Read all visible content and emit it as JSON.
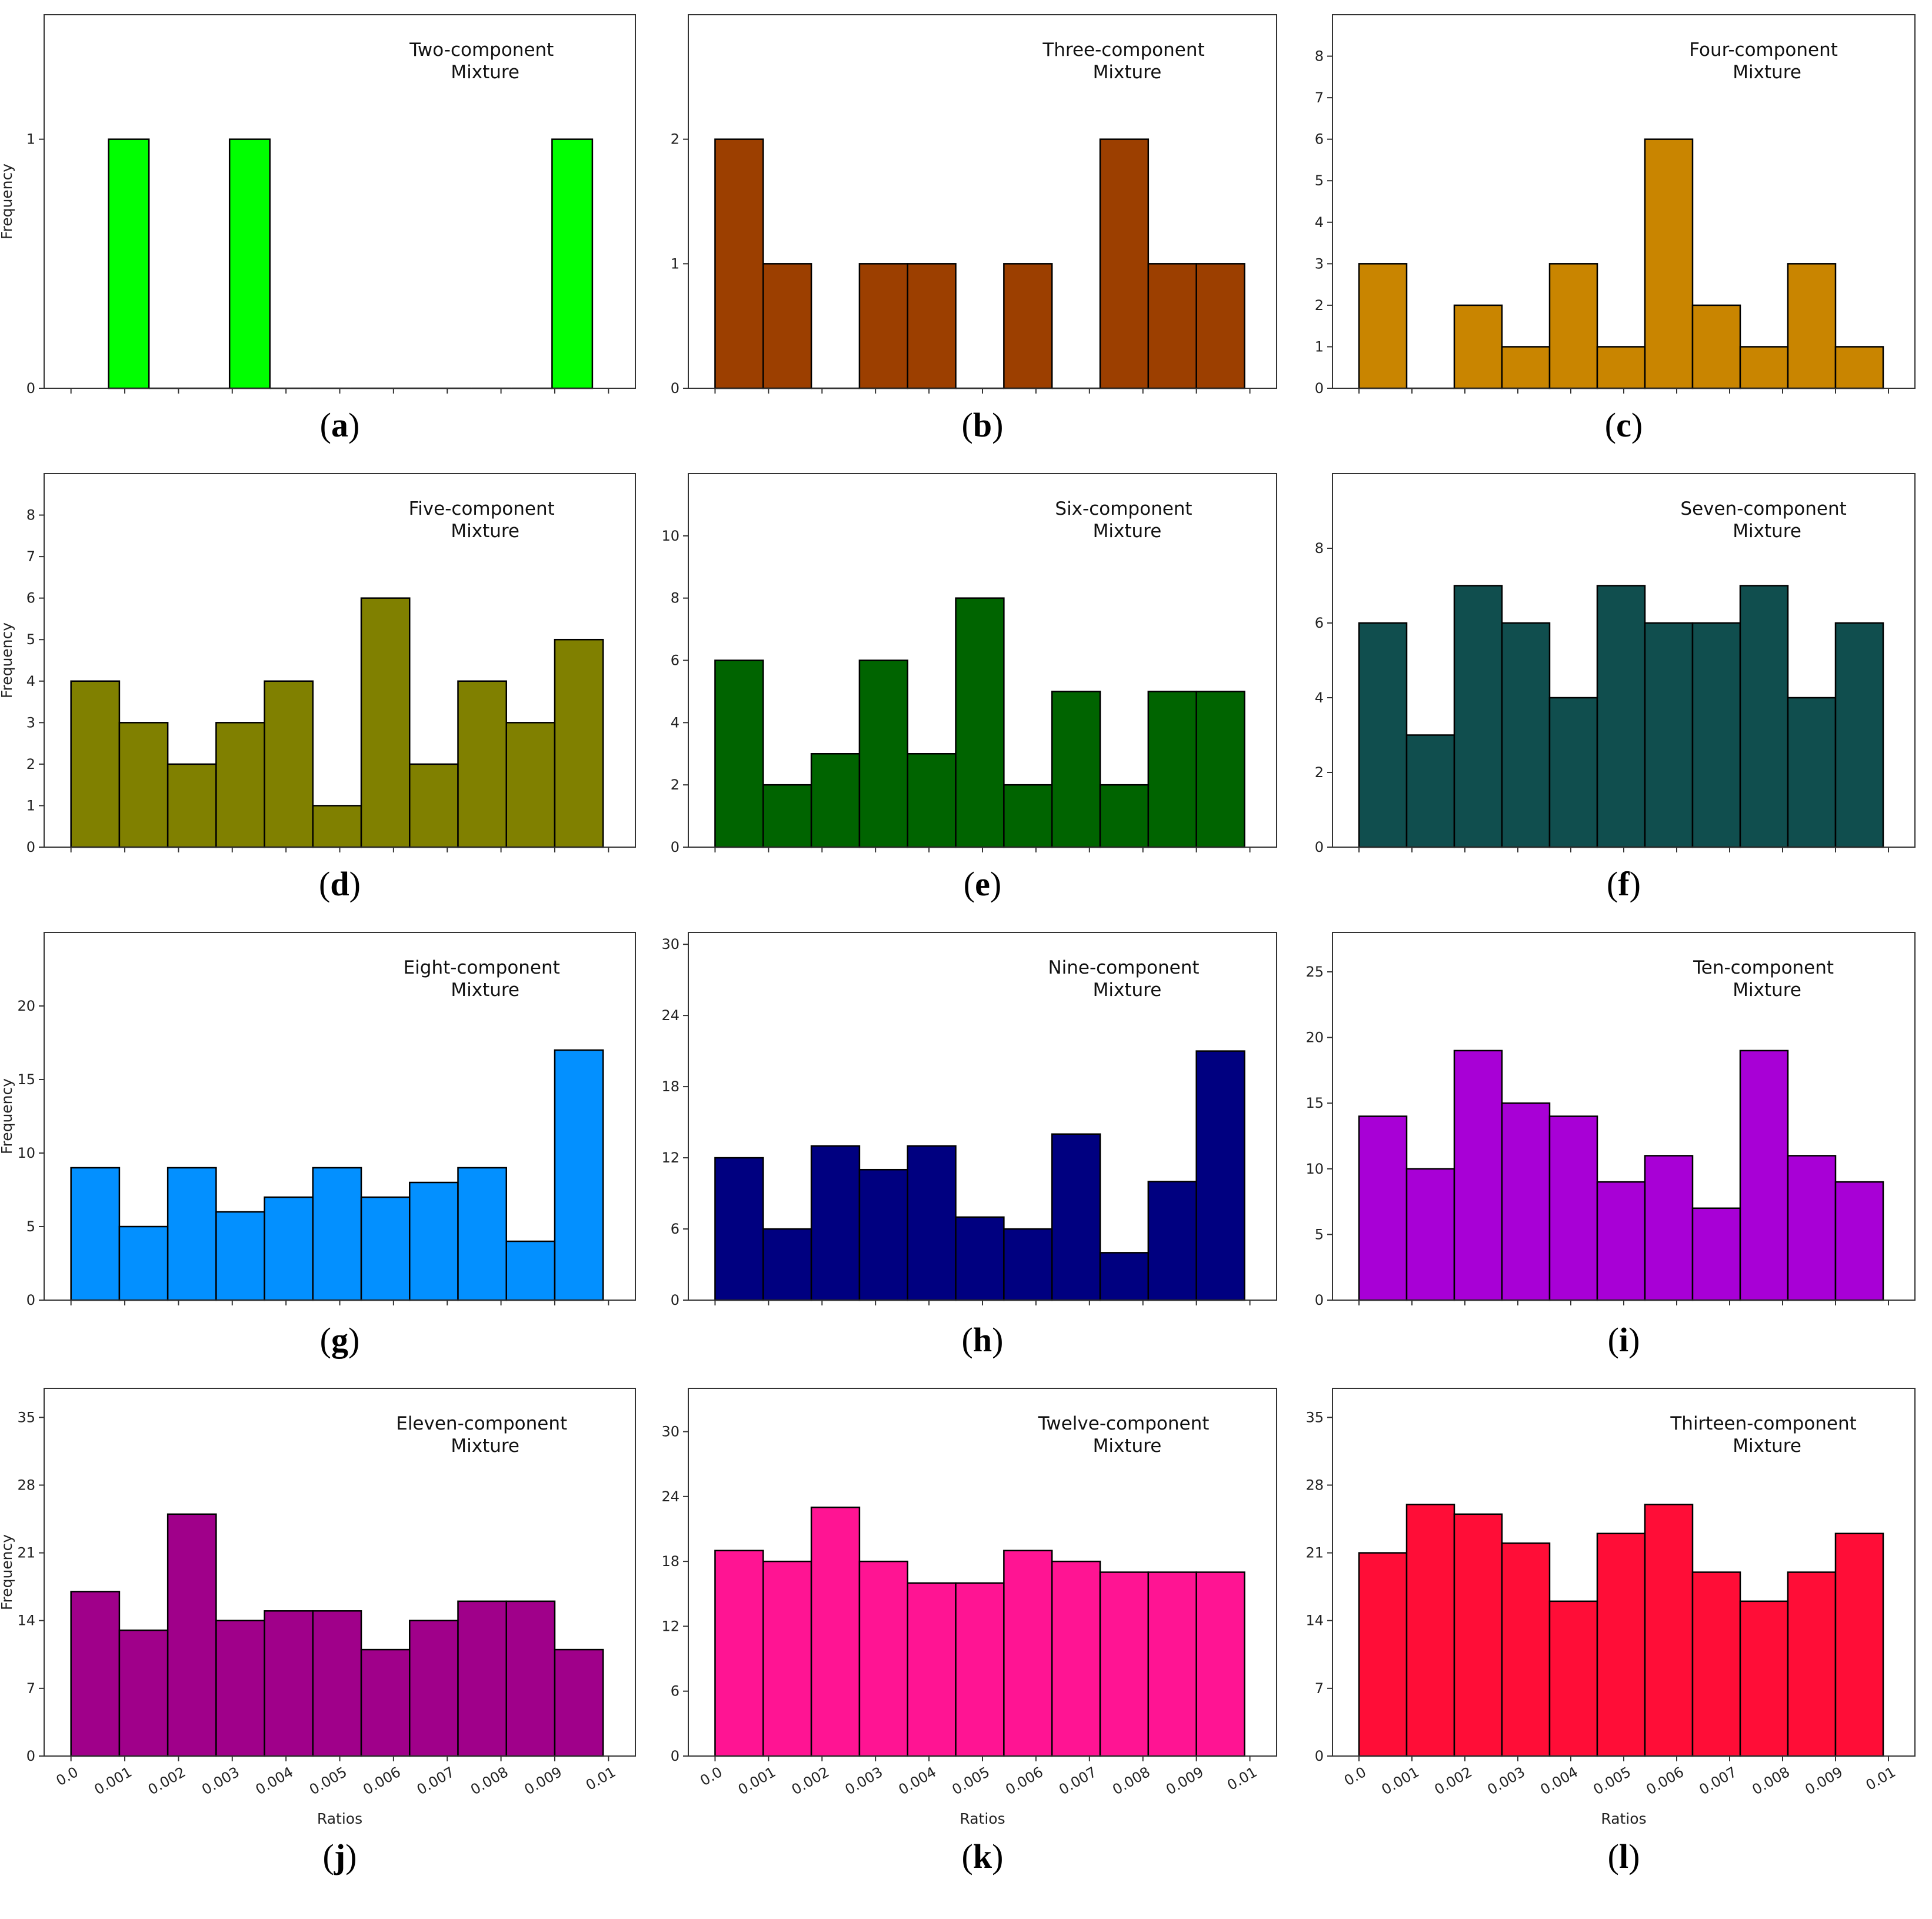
{
  "figure": {
    "xlabel": "Ratios",
    "ylabel": "Frequency"
  },
  "chart_data": [
    {
      "type": "bar",
      "panel": "(a)",
      "panel_letter": "a",
      "title_line1": "Two-component",
      "title_line2": "Mixture",
      "ylabel": "Frequency",
      "xlabel": "",
      "ylim": [
        0,
        1.5
      ],
      "yticks": [
        0,
        1
      ],
      "xlim": [
        -0.0005,
        0.0105
      ],
      "bin_edges_range": [
        0.0007,
        0.0097
      ],
      "bins": 12,
      "values": [
        1,
        0,
        0,
        1,
        0,
        0,
        0,
        0,
        0,
        0,
        0,
        1
      ],
      "color": "#00ff00",
      "show_xtick_labels": false
    },
    {
      "type": "bar",
      "panel": "(b)",
      "panel_letter": "b",
      "title_line1": "Three-component",
      "title_line2": "Mixture",
      "ylabel": "",
      "xlabel": "",
      "ylim": [
        0,
        3
      ],
      "yticks": [
        0,
        1,
        2
      ],
      "xlim": [
        -0.0005,
        0.0105
      ],
      "bin_edges_range": [
        0.0,
        0.0099
      ],
      "bins": 11,
      "values": [
        2,
        1,
        0,
        1,
        1,
        0,
        1,
        0,
        2,
        1,
        1
      ],
      "color": "#9c3f00",
      "show_xtick_labels": false
    },
    {
      "type": "bar",
      "panel": "(c)",
      "panel_letter": "c",
      "title_line1": "Four-component",
      "title_line2": "Mixture",
      "ylabel": "",
      "xlabel": "",
      "ylim": [
        0,
        9
      ],
      "yticks": [
        0,
        1,
        2,
        3,
        4,
        5,
        6,
        7,
        8
      ],
      "xlim": [
        -0.0005,
        0.0105
      ],
      "bin_edges_range": [
        0.0,
        0.0099
      ],
      "bins": 11,
      "values": [
        3,
        0,
        2,
        1,
        3,
        1,
        6,
        2,
        1,
        3,
        1
      ],
      "color": "#c98500",
      "show_xtick_labels": false
    },
    {
      "type": "bar",
      "panel": "(d)",
      "panel_letter": "d",
      "title_line1": "Five-component",
      "title_line2": "Mixture",
      "ylabel": "Frequency",
      "xlabel": "",
      "ylim": [
        0,
        9
      ],
      "yticks": [
        0,
        1,
        2,
        3,
        4,
        5,
        6,
        7,
        8
      ],
      "xlim": [
        -0.0005,
        0.0105
      ],
      "bin_edges_range": [
        0.0,
        0.0099
      ],
      "bins": 11,
      "values": [
        4,
        3,
        2,
        3,
        4,
        1,
        6,
        2,
        4,
        3,
        5
      ],
      "color": "#808000",
      "show_xtick_labels": false
    },
    {
      "type": "bar",
      "panel": "(e)",
      "panel_letter": "e",
      "title_line1": "Six-component",
      "title_line2": "Mixture",
      "ylabel": "",
      "xlabel": "",
      "ylim": [
        0,
        12
      ],
      "yticks": [
        0,
        2,
        4,
        6,
        8,
        10
      ],
      "xlim": [
        -0.0005,
        0.0105
      ],
      "bin_edges_range": [
        0.0,
        0.0099
      ],
      "bins": 11,
      "values": [
        6,
        2,
        3,
        6,
        3,
        8,
        2,
        5,
        2,
        5,
        5
      ],
      "color": "#006400",
      "show_xtick_labels": false
    },
    {
      "type": "bar",
      "panel": "(f)",
      "panel_letter": "f",
      "title_line1": "Seven-component",
      "title_line2": "Mixture",
      "ylabel": "",
      "xlabel": "",
      "ylim": [
        0,
        10
      ],
      "yticks": [
        0,
        2,
        4,
        6,
        8
      ],
      "xlim": [
        -0.0005,
        0.0105
      ],
      "bin_edges_range": [
        0.0,
        0.0099
      ],
      "bins": 11,
      "values": [
        6,
        3,
        7,
        6,
        4,
        7,
        6,
        6,
        7,
        4,
        6
      ],
      "color": "#104e4e",
      "show_xtick_labels": false
    },
    {
      "type": "bar",
      "panel": "(g)",
      "panel_letter": "g",
      "title_line1": "Eight-component",
      "title_line2": "Mixture",
      "ylabel": "Frequency",
      "xlabel": "",
      "ylim": [
        0,
        25
      ],
      "yticks": [
        0,
        5,
        10,
        15,
        20
      ],
      "xlim": [
        -0.0005,
        0.0105
      ],
      "bin_edges_range": [
        0.0,
        0.0099
      ],
      "bins": 11,
      "values": [
        9,
        5,
        9,
        6,
        7,
        9,
        7,
        8,
        9,
        4,
        17
      ],
      "color": "#0390ff",
      "show_xtick_labels": false
    },
    {
      "type": "bar",
      "panel": "(h)",
      "panel_letter": "h",
      "title_line1": "Nine-component",
      "title_line2": "Mixture",
      "ylabel": "",
      "xlabel": "",
      "ylim": [
        0,
        31
      ],
      "yticks": [
        0,
        6,
        12,
        18,
        24,
        30
      ],
      "xlim": [
        -0.0005,
        0.0105
      ],
      "bin_edges_range": [
        0.0,
        0.0099
      ],
      "bins": 11,
      "values": [
        12,
        6,
        13,
        11,
        13,
        7,
        6,
        14,
        4,
        10,
        21
      ],
      "color": "#000080",
      "show_xtick_labels": false
    },
    {
      "type": "bar",
      "panel": "(i)",
      "panel_letter": "i",
      "title_line1": "Ten-component",
      "title_line2": "Mixture",
      "ylabel": "",
      "xlabel": "",
      "ylim": [
        0,
        28
      ],
      "yticks": [
        0,
        5,
        10,
        15,
        20,
        25
      ],
      "xlim": [
        -0.0005,
        0.0105
      ],
      "bin_edges_range": [
        0.0,
        0.0099
      ],
      "bins": 11,
      "values": [
        14,
        10,
        19,
        15,
        14,
        9,
        11,
        7,
        19,
        11,
        9
      ],
      "color": "#a800d6",
      "show_xtick_labels": false
    },
    {
      "type": "bar",
      "panel": "(j)",
      "panel_letter": "j",
      "title_line1": "Eleven-component",
      "title_line2": "Mixture",
      "ylabel": "Frequency",
      "xlabel": "Ratios",
      "ylim": [
        0,
        38
      ],
      "yticks": [
        0,
        7,
        14,
        21,
        28,
        35
      ],
      "xlim": [
        -0.0005,
        0.0105
      ],
      "bin_edges_range": [
        0.0,
        0.0099
      ],
      "bins": 11,
      "values": [
        17,
        13,
        25,
        14,
        15,
        15,
        11,
        14,
        16,
        16,
        11
      ],
      "color": "#a0008a",
      "show_xtick_labels": true
    },
    {
      "type": "bar",
      "panel": "(k)",
      "panel_letter": "k",
      "title_line1": "Twelve-component",
      "title_line2": "Mixture",
      "ylabel": "",
      "xlabel": "Ratios",
      "ylim": [
        0,
        34
      ],
      "yticks": [
        0,
        6,
        12,
        18,
        24,
        30
      ],
      "xlim": [
        -0.0005,
        0.0105
      ],
      "bin_edges_range": [
        0.0,
        0.0099
      ],
      "bins": 11,
      "values": [
        19,
        18,
        23,
        18,
        16,
        16,
        19,
        18,
        17,
        17,
        17
      ],
      "color": "#ff1493",
      "show_xtick_labels": true
    },
    {
      "type": "bar",
      "panel": "(l)",
      "panel_letter": "l",
      "title_line1": "Thirteen-component",
      "title_line2": "Mixture",
      "ylabel": "",
      "xlabel": "Ratios",
      "ylim": [
        0,
        38
      ],
      "yticks": [
        0,
        7,
        14,
        21,
        28,
        35
      ],
      "xlim": [
        -0.0005,
        0.0105
      ],
      "bin_edges_range": [
        0.0,
        0.0099
      ],
      "bins": 11,
      "values": [
        21,
        26,
        25,
        22,
        16,
        23,
        26,
        19,
        16,
        19,
        23
      ],
      "color": "#ff0d37",
      "show_xtick_labels": true
    }
  ],
  "xtick_values": [
    0.0,
    0.001,
    0.002,
    0.003,
    0.004,
    0.005,
    0.006,
    0.007,
    0.008,
    0.009,
    0.01
  ],
  "xtick_labels": [
    "0.0",
    "0.001",
    "0.002",
    "0.003",
    "0.004",
    "0.005",
    "0.006",
    "0.007",
    "0.008",
    "0.009",
    "0.01"
  ]
}
